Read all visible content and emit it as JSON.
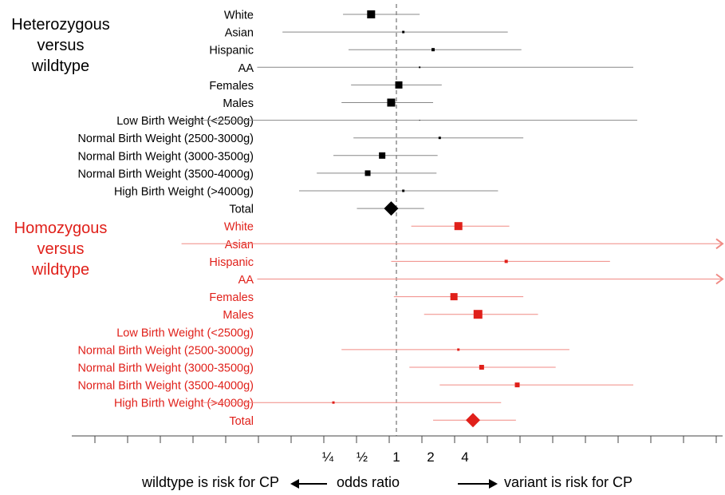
{
  "chart_data": {
    "type": "forest",
    "reference_value": 1,
    "x_tick_labels": [
      "¼",
      "½",
      "1",
      "2",
      "4"
    ],
    "x_tick_values": [
      0.25,
      0.5,
      1,
      2,
      4
    ],
    "groups": [
      {
        "label": [
          "Heterozygous",
          "versus",
          "wildtype"
        ],
        "color": "#000000",
        "rows": [
          {
            "label": "White",
            "or": 0.6,
            "lo": 0.34,
            "hi": 1.6,
            "weight": 10
          },
          {
            "label": "Asian",
            "or": 1.15,
            "lo": 0.1,
            "hi": 9.5,
            "weight": 3
          },
          {
            "label": "Hispanic",
            "or": 2.1,
            "lo": 0.38,
            "hi": 12.5,
            "weight": 4
          },
          {
            "label": "AA",
            "or": 1.6,
            "lo": 0.06,
            "hi": 120,
            "weight": 2
          },
          {
            "label": "Females",
            "or": 1.05,
            "lo": 0.4,
            "hi": 2.5,
            "weight": 9
          },
          {
            "label": "Males",
            "or": 0.9,
            "lo": 0.33,
            "hi": 2.1,
            "weight": 10
          },
          {
            "label": "Low Birth Weight (<2500g)",
            "or": 1.6,
            "lo": 0.01,
            "hi": 130,
            "weight": 1
          },
          {
            "label": "Normal Birth Weight (2500-3000g)",
            "or": 2.4,
            "lo": 0.42,
            "hi": 13,
            "weight": 3
          },
          {
            "label": "Normal Birth Weight (3000-3500g)",
            "or": 0.75,
            "lo": 0.28,
            "hi": 2.3,
            "weight": 8
          },
          {
            "label": "Normal Birth Weight (3500-4000g)",
            "or": 0.56,
            "lo": 0.2,
            "hi": 2.25,
            "weight": 7
          },
          {
            "label": "High Birth Weight (>4000g)",
            "or": 1.15,
            "lo": 0.14,
            "hi": 7.8,
            "weight": 3
          },
          {
            "label": "Total",
            "or": 0.9,
            "lo": 0.45,
            "hi": 1.75,
            "diamond": true
          }
        ]
      },
      {
        "label": [
          "Homozygous",
          "versus",
          "wildtype"
        ],
        "color": "#e0201a",
        "rows": [
          {
            "label": "White",
            "or": 3.5,
            "lo": 1.35,
            "hi": 9.8,
            "weight": 10
          },
          {
            "label": "Asian",
            "or": null,
            "lo": 0.013,
            "hi": 1000,
            "weight": 0,
            "arrow_right": true
          },
          {
            "label": "Hispanic",
            "or": 9.2,
            "lo": 0.9,
            "hi": 75,
            "weight": 4
          },
          {
            "label": "AA",
            "or": null,
            "lo": 0.06,
            "hi": 1000,
            "weight": 0,
            "arrow_right": true
          },
          {
            "label": "Females",
            "or": 3.2,
            "lo": 0.95,
            "hi": 13,
            "weight": 9
          },
          {
            "label": "Males",
            "or": 5.2,
            "lo": 1.75,
            "hi": 17.5,
            "weight": 11
          },
          {
            "label": "Low Birth Weight (<2500g)",
            "or": null,
            "lo": null,
            "hi": null,
            "weight": 0
          },
          {
            "label": "Normal Birth Weight (2500-3000g)",
            "or": 3.5,
            "lo": 0.33,
            "hi": 33,
            "weight": 3
          },
          {
            "label": "Normal Birth Weight (3000-3500g)",
            "or": 5.6,
            "lo": 1.3,
            "hi": 25,
            "weight": 6
          },
          {
            "label": "Normal Birth Weight (3500-4000g)",
            "or": 11.5,
            "lo": 2.4,
            "hi": 120,
            "weight": 6
          },
          {
            "label": "High Birth Weight (>4000g)",
            "or": 0.28,
            "lo": 0.02,
            "hi": 8.3,
            "weight": 3
          },
          {
            "label": "Total",
            "or": 4.7,
            "lo": 2.1,
            "hi": 11.2,
            "diamond": true
          }
        ]
      }
    ]
  },
  "footer": {
    "left": "wildtype is risk for CP",
    "middle": "odds ratio",
    "right": "variant is risk for CP"
  }
}
